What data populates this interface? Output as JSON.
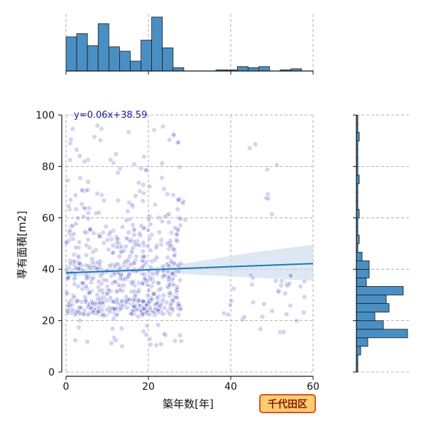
{
  "chart_data": {
    "type": "scatter",
    "xlabel": "築年数[年]",
    "ylabel": "専有面積[m2]",
    "xlim": [
      0,
      60
    ],
    "ylim": [
      0,
      100
    ],
    "x_ticks": [
      "0",
      "20",
      "40",
      "60"
    ],
    "y_ticks": [
      "0",
      "20",
      "40",
      "60",
      "80",
      "100"
    ],
    "grid": true,
    "regression": {
      "equation": "y=0.06x+38.59",
      "slope": 0.06,
      "intercept": 38.59,
      "color": "#1f77b4"
    },
    "badge": "千代田区",
    "colors": {
      "points": "#3f3fbf",
      "hist": "#4a8fc4",
      "ci_band": "#c6d9ec"
    },
    "top_histogram": {
      "bin_start": 0,
      "bin_width": 2.6,
      "counts": [
        31,
        34,
        23,
        43,
        22,
        18,
        9,
        28,
        49,
        21,
        3,
        0,
        0,
        0,
        1,
        1,
        4,
        3,
        4,
        0,
        1,
        2
      ]
    },
    "right_histogram": {
      "bin_start": 0,
      "bin_width": 3.33,
      "counts": [
        1,
        1,
        3,
        8,
        36,
        19,
        13,
        23,
        21,
        33,
        7,
        9,
        9,
        4,
        1,
        2,
        1,
        1,
        2,
        1,
        1,
        1,
        2,
        1,
        1,
        1,
        1,
        2,
        1,
        1
      ]
    },
    "clusters": [
      {
        "x": [
          0,
          28
        ],
        "y": [
          22,
          28
        ],
        "n": 200
      },
      {
        "x": [
          0,
          28
        ],
        "y": [
          28,
          36
        ],
        "n": 110
      },
      {
        "x": [
          0,
          28
        ],
        "y": [
          36,
          44
        ],
        "n": 140
      },
      {
        "x": [
          0,
          28
        ],
        "y": [
          44,
          56
        ],
        "n": 110
      },
      {
        "x": [
          0,
          30
        ],
        "y": [
          56,
          70
        ],
        "n": 60
      },
      {
        "x": [
          0,
          28
        ],
        "y": [
          70,
          96
        ],
        "n": 45
      },
      {
        "x": [
          0,
          28
        ],
        "y": [
          10,
          22
        ],
        "n": 25
      },
      {
        "x": [
          38,
          58
        ],
        "y": [
          15,
          40
        ],
        "n": 35
      },
      {
        "x": [
          40,
          56
        ],
        "y": [
          50,
          93
        ],
        "n": 8
      }
    ]
  }
}
